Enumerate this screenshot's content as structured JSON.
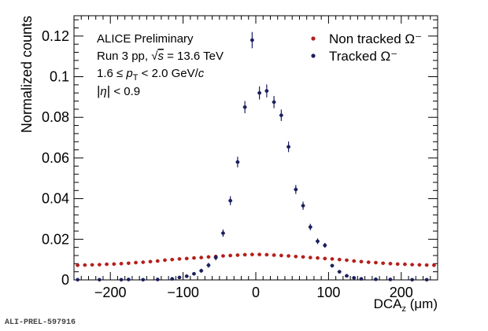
{
  "chart_data": {
    "type": "scatter",
    "title": "",
    "xlabel": "DCA",
    "xlabel_sub": "z",
    "xlabel_unit": " (μm)",
    "ylabel": "Normalized counts",
    "xlim": [
      -250,
      250
    ],
    "ylim": [
      0,
      0.13
    ],
    "x_ticks": [
      -200,
      -100,
      0,
      100,
      200
    ],
    "y_ticks": [
      0,
      0.02,
      0.04,
      0.06,
      0.08,
      0.1,
      0.12
    ],
    "y_tick_labels": [
      "0",
      "0.02",
      "0.04",
      "0.06",
      "0.08",
      "0.1",
      "0.12"
    ],
    "grid": false,
    "legend_position": "top-right",
    "annotations": {
      "line1": "ALICE Preliminary",
      "line2_pre": "Run 3 pp, ",
      "line2_sqrt": "√",
      "line2_s": "s",
      "line2_post": " = 13.6 TeV",
      "line3_pre": "1.6 ≤ ",
      "line3_p": "p",
      "line3_sub": "T",
      "line3_post": " < 2.0 GeV/",
      "line3_c": "c",
      "line4_bar_l": "|",
      "line4_eta": "η",
      "line4_bar_r": "|",
      "line4_post": " < 0.9"
    },
    "series": [
      {
        "name": "Non tracked Ω⁻",
        "color": "#b5201b",
        "x": [
          -245,
          -235,
          -225,
          -215,
          -205,
          -195,
          -185,
          -175,
          -165,
          -155,
          -145,
          -135,
          -125,
          -115,
          -105,
          -95,
          -85,
          -75,
          -65,
          -55,
          -45,
          -35,
          -25,
          -15,
          -5,
          5,
          15,
          25,
          35,
          45,
          55,
          65,
          75,
          85,
          95,
          105,
          115,
          125,
          135,
          145,
          155,
          165,
          175,
          185,
          195,
          205,
          215,
          225,
          235,
          245
        ],
        "y": [
          0.0072,
          0.0073,
          0.0074,
          0.0075,
          0.0077,
          0.0078,
          0.008,
          0.0082,
          0.0085,
          0.0087,
          0.009,
          0.0093,
          0.0097,
          0.01,
          0.0103,
          0.0105,
          0.0108,
          0.011,
          0.0113,
          0.0115,
          0.0118,
          0.012,
          0.0122,
          0.0124,
          0.0125,
          0.0125,
          0.0124,
          0.0122,
          0.012,
          0.0118,
          0.0115,
          0.0113,
          0.011,
          0.0108,
          0.0105,
          0.0103,
          0.01,
          0.0097,
          0.0093,
          0.009,
          0.0087,
          0.0085,
          0.0082,
          0.008,
          0.0078,
          0.0077,
          0.0075,
          0.0074,
          0.0073,
          0.0072
        ],
        "yerr": 0.0003
      },
      {
        "name": "Tracked Ω⁻",
        "color": "#1a1f5e",
        "x": [
          -245,
          -215,
          -185,
          -175,
          -155,
          -135,
          -115,
          -105,
          -95,
          -85,
          -75,
          -65,
          -55,
          -45,
          -35,
          -25,
          -15,
          -5,
          5,
          15,
          25,
          35,
          45,
          55,
          65,
          75,
          85,
          95,
          105,
          115,
          125,
          135,
          145,
          165,
          185,
          215,
          235
        ],
        "y": [
          0.0001,
          0.0001,
          0.0001,
          0.0002,
          0.0001,
          0.0002,
          0.0005,
          0.0012,
          0.0018,
          0.003,
          0.0045,
          0.0072,
          0.011,
          0.023,
          0.039,
          0.058,
          0.085,
          0.118,
          0.092,
          0.093,
          0.0875,
          0.081,
          0.0655,
          0.0445,
          0.0365,
          0.026,
          0.019,
          0.017,
          0.007,
          0.004,
          0.002,
          0.001,
          0.0005,
          0.0003,
          0.0002,
          0.0001,
          0.0001
        ],
        "yerr": [
          0.0001,
          0.0001,
          0.0001,
          0.0001,
          0.0001,
          0.0001,
          0.0003,
          0.0005,
          0.0006,
          0.0008,
          0.001,
          0.0012,
          0.0014,
          0.0018,
          0.0022,
          0.0026,
          0.003,
          0.004,
          0.0032,
          0.0032,
          0.003,
          0.0028,
          0.0026,
          0.0022,
          0.002,
          0.0016,
          0.0014,
          0.0012,
          0.0009,
          0.0007,
          0.0005,
          0.0004,
          0.0003,
          0.0002,
          0.0001,
          0.0001,
          0.0001
        ]
      }
    ]
  },
  "footer": "ALI-PREL-597916"
}
